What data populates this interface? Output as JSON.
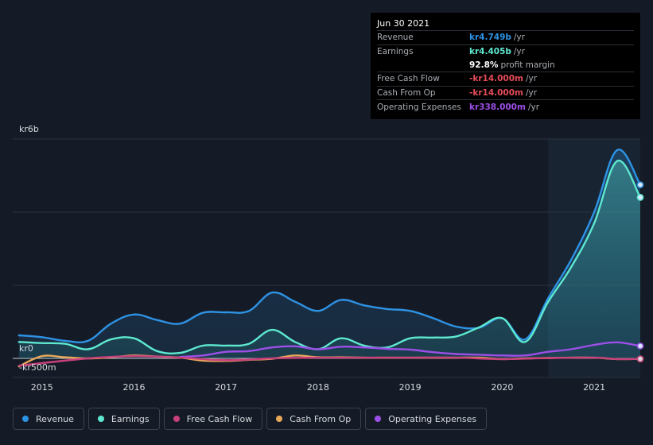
{
  "tooltip": {
    "date": "Jun 30 2021",
    "rows": [
      {
        "label": "Revenue",
        "value": "kr4.749b",
        "unit": "/yr",
        "color": "#2e93e5"
      },
      {
        "label": "Earnings",
        "value": "kr4.405b",
        "unit": "/yr",
        "color": "#5ee8d0"
      },
      {
        "label": "",
        "value": "92.8%",
        "unit": "profit margin",
        "color": "#ffffff"
      },
      {
        "label": "Free Cash Flow",
        "value": "-kr14.000m",
        "unit": "/yr",
        "color": "#e64b59"
      },
      {
        "label": "Cash From Op",
        "value": "-kr14.000m",
        "unit": "/yr",
        "color": "#e64b59"
      },
      {
        "label": "Operating Expenses",
        "value": "kr338.000m",
        "unit": "/yr",
        "color": "#9c4fe8"
      }
    ]
  },
  "legend": [
    {
      "label": "Revenue",
      "color": "#2e93e5"
    },
    {
      "label": "Earnings",
      "color": "#5ee8d0"
    },
    {
      "label": "Free Cash Flow",
      "color": "#c8407c"
    },
    {
      "label": "Cash From Op",
      "color": "#e8a85a"
    },
    {
      "label": "Operating Expenses",
      "color": "#9c4fe8"
    }
  ],
  "chart_data": {
    "type": "line",
    "title": "",
    "y_tick_labels": [
      "kr6b",
      "kr0",
      "-kr500m"
    ],
    "y_ticks": [
      6,
      0,
      -0.5
    ],
    "ylim": [
      -0.5,
      6
    ],
    "xlim": [
      2014.7,
      2021.5
    ],
    "x_tick_labels": [
      "2015",
      "2016",
      "2017",
      "2018",
      "2019",
      "2020",
      "2021"
    ],
    "x_ticks": [
      2015,
      2016,
      2017,
      2018,
      2019,
      2020,
      2021
    ],
    "highlight_start": 2020.5,
    "units": "kr billions",
    "series": [
      {
        "name": "Revenue",
        "color": "#2e93e5",
        "fill": true,
        "x": [
          2014.75,
          2015.0,
          2015.25,
          2015.5,
          2015.75,
          2016.0,
          2016.25,
          2016.5,
          2016.75,
          2017.0,
          2017.25,
          2017.5,
          2017.75,
          2018.0,
          2018.25,
          2018.5,
          2018.75,
          2019.0,
          2019.25,
          2019.5,
          2019.75,
          2020.0,
          2020.25,
          2020.5,
          2020.75,
          2021.0,
          2021.25,
          2021.5
        ],
        "y": [
          0.63,
          0.58,
          0.48,
          0.48,
          0.95,
          1.2,
          1.05,
          0.95,
          1.25,
          1.26,
          1.3,
          1.8,
          1.55,
          1.3,
          1.6,
          1.45,
          1.35,
          1.3,
          1.1,
          0.87,
          0.84,
          1.1,
          0.52,
          1.65,
          2.7,
          4.0,
          5.7,
          4.749
        ]
      },
      {
        "name": "Earnings",
        "color": "#5ee8d0",
        "fill": true,
        "x": [
          2014.75,
          2015.0,
          2015.25,
          2015.5,
          2015.75,
          2016.0,
          2016.25,
          2016.5,
          2016.75,
          2017.0,
          2017.25,
          2017.5,
          2017.75,
          2018.0,
          2018.25,
          2018.5,
          2018.75,
          2019.0,
          2019.25,
          2019.5,
          2019.75,
          2020.0,
          2020.25,
          2020.5,
          2020.75,
          2021.0,
          2021.25,
          2021.5
        ],
        "y": [
          0.45,
          0.42,
          0.4,
          0.25,
          0.52,
          0.55,
          0.2,
          0.15,
          0.35,
          0.35,
          0.4,
          0.78,
          0.45,
          0.25,
          0.55,
          0.35,
          0.3,
          0.55,
          0.57,
          0.6,
          0.85,
          1.1,
          0.45,
          1.55,
          2.5,
          3.7,
          5.4,
          4.405
        ]
      },
      {
        "name": "Operating Expenses",
        "color": "#9c4fe8",
        "fill": false,
        "x": [
          2016.5,
          2016.75,
          2017.0,
          2017.25,
          2017.5,
          2017.75,
          2018.0,
          2018.25,
          2018.5,
          2018.75,
          2019.0,
          2019.25,
          2019.5,
          2019.75,
          2020.0,
          2020.25,
          2020.5,
          2020.75,
          2021.0,
          2021.25,
          2021.5
        ],
        "y": [
          0.04,
          0.08,
          0.18,
          0.2,
          0.3,
          0.33,
          0.25,
          0.32,
          0.3,
          0.26,
          0.24,
          0.17,
          0.12,
          0.1,
          0.08,
          0.08,
          0.18,
          0.25,
          0.37,
          0.44,
          0.338
        ]
      },
      {
        "name": "Cash From Op",
        "color": "#e8a85a",
        "fill": false,
        "x": [
          2014.75,
          2015.0,
          2015.25,
          2015.5,
          2015.75,
          2016.0,
          2016.25,
          2016.5,
          2016.75,
          2017.0,
          2017.25,
          2017.5,
          2017.75,
          2018.0,
          2018.25,
          2018.5,
          2018.75,
          2019.0,
          2019.25,
          2019.5,
          2019.75,
          2020.0,
          2020.25,
          2020.5,
          2020.75,
          2021.0,
          2021.25,
          2021.5
        ],
        "y": [
          -0.22,
          0.06,
          0.03,
          0.0,
          0.03,
          0.08,
          0.05,
          0.02,
          -0.06,
          -0.07,
          -0.04,
          -0.01,
          0.08,
          0.03,
          0.03,
          0.02,
          0.02,
          0.02,
          0.02,
          0.02,
          0.02,
          -0.02,
          0.0,
          0.01,
          0.02,
          0.02,
          -0.02,
          -0.014
        ]
      },
      {
        "name": "Free Cash Flow",
        "color": "#c8407c",
        "fill": false,
        "x": [
          2014.75,
          2015.5,
          2016.0,
          2016.5,
          2017.0,
          2017.5,
          2018.0,
          2018.5,
          2019.0,
          2019.5,
          2020.0,
          2020.5,
          2021.0,
          2021.25,
          2021.5
        ],
        "y": [
          -0.2,
          0.0,
          0.06,
          0.02,
          -0.05,
          0.0,
          0.02,
          0.02,
          0.02,
          0.02,
          -0.02,
          0.01,
          0.02,
          -0.02,
          -0.014
        ]
      }
    ]
  }
}
